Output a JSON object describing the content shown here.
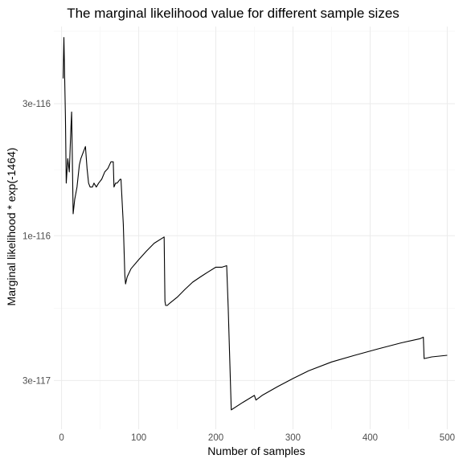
{
  "chart_data": {
    "type": "line",
    "title": "The marginal likelihood value for different sample sizes",
    "xlabel": "Number of samples",
    "ylabel": "Marginal likelihood * exp(-1464)",
    "xlim": [
      -10,
      510
    ],
    "ylim": [
      2e-117,
      5.7e-116
    ],
    "y_scale": "log",
    "x_ticks": [
      0,
      100,
      200,
      300,
      400,
      500
    ],
    "x_tick_labels": [
      "0",
      "100",
      "200",
      "300",
      "400",
      "500"
    ],
    "y_ticks": [
      3e-117,
      1e-116,
      3e-116
    ],
    "y_tick_labels": [
      "3e-117",
      "1e-116",
      "3e-116"
    ],
    "grid": true,
    "legend": "none",
    "series": [
      {
        "x": [
          2,
          3,
          4,
          5,
          6,
          8,
          10,
          12,
          13,
          14,
          15,
          17,
          20,
          23,
          25,
          28,
          31,
          33,
          35,
          37,
          40,
          42,
          45,
          48,
          52,
          56,
          60,
          64,
          67,
          68,
          70,
          72,
          76,
          77,
          80,
          82,
          83,
          85,
          90,
          100,
          110,
          120,
          133,
          134,
          135,
          137,
          140,
          150,
          160,
          170,
          180,
          190,
          200,
          208,
          214,
          216,
          220,
          235,
          250,
          252,
          260,
          280,
          300,
          320,
          350,
          380,
          410,
          440,
          465,
          469,
          470,
          480,
          500
        ],
        "y": [
          3.7e-116,
          5.2e-116,
          3.8e-116,
          2.7e-116,
          1.55e-116,
          1.9e-116,
          1.7e-116,
          2.4e-116,
          2.8e-116,
          1.9e-116,
          1.2e-116,
          1.35e-116,
          1.5e-116,
          1.8e-116,
          1.9e-116,
          2e-116,
          2.1e-116,
          1.75e-116,
          1.55e-116,
          1.5e-116,
          1.5e-116,
          1.55e-116,
          1.5e-116,
          1.55e-116,
          1.6e-116,
          1.7e-116,
          1.75e-116,
          1.85e-116,
          1.85e-116,
          1.5e-116,
          1.55e-116,
          1.55e-116,
          1.6e-116,
          1.6e-116,
          1.1e-116,
          7.2e-117,
          6.7e-117,
          7.1e-117,
          7.6e-117,
          8.2e-117,
          8.8e-117,
          9.4e-117,
          9.9e-117,
          5.8e-117,
          5.6e-117,
          5.6e-117,
          5.7e-117,
          6e-117,
          6.4e-117,
          6.8e-117,
          7.1e-117,
          7.4e-117,
          7.7e-117,
          7.7e-117,
          7.8e-117,
          5.5e-117,
          2.35e-117,
          2.5e-117,
          2.65e-117,
          2.55e-117,
          2.65e-117,
          2.85e-117,
          3.05e-117,
          3.25e-117,
          3.5e-117,
          3.7e-117,
          3.9e-117,
          4.1e-117,
          4.25e-117,
          4.3e-117,
          3.6e-117,
          3.65e-117,
          3.7e-117
        ]
      }
    ]
  }
}
